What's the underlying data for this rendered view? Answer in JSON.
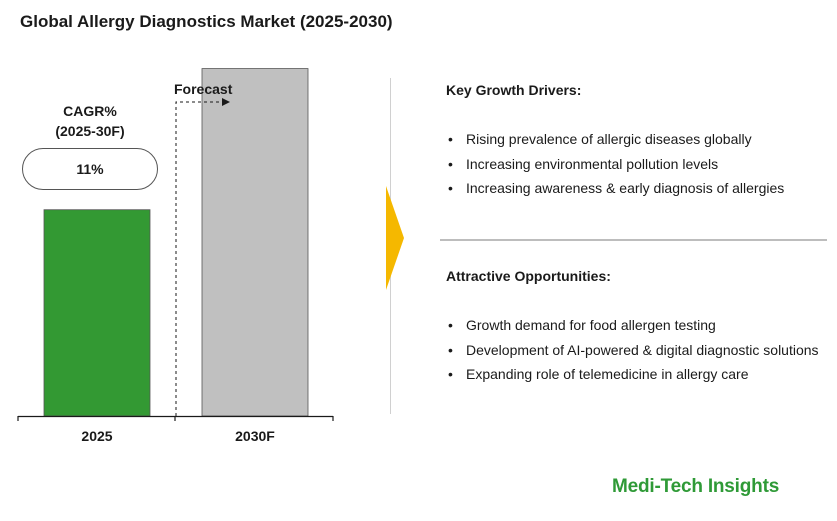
{
  "title": "Global Allergy Diagnostics Market (2025-2030)",
  "cagr": {
    "label_line1": "CAGR%",
    "label_line2": "(2025-30F)",
    "value": "11%"
  },
  "chart_data": {
    "type": "bar",
    "categories": [
      "2025",
      "2030F"
    ],
    "values": [
      38,
      64
    ],
    "ylim": [
      0,
      70
    ],
    "colors": [
      "#339933",
      "#c0c0c0"
    ],
    "forecast_label": "Forecast",
    "title": "",
    "xlabel": "",
    "ylabel": ""
  },
  "key_growth_drivers": {
    "heading": "Key Growth Drivers:",
    "items": [
      "Rising prevalence of allergic diseases globally",
      "Increasing environmental pollution levels",
      "Increasing awareness & early diagnosis of allergies"
    ]
  },
  "attractive_opportunities": {
    "heading": "Attractive Opportunities:",
    "items": [
      "Growth demand for food allergen testing",
      "Development of AI-powered & digital diagnostic solutions",
      "Expanding role of telemedicine in allergy care"
    ]
  },
  "bullet_glyph": "•",
  "arrow_color": "#f5b800",
  "brand": {
    "name": "Medi-Tech Insights",
    "color": "#2f9a37"
  }
}
